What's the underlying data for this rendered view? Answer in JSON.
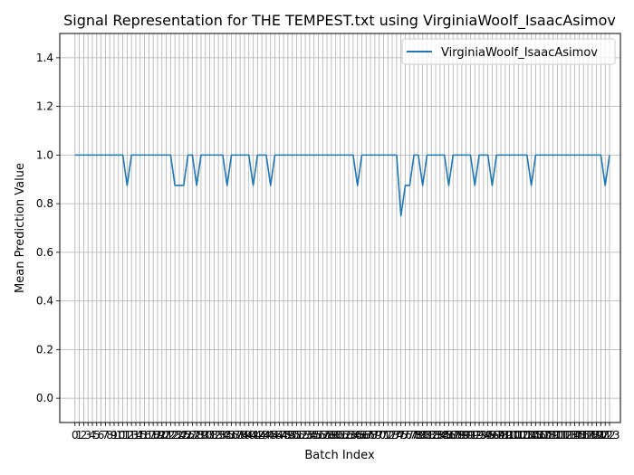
{
  "chart_data": {
    "type": "line",
    "title": "Signal Representation for THE TEMPEST.txt using VirginiaWoolf_IsaacAsimov",
    "xlabel": "Batch Index",
    "ylabel": "Mean Prediction Value",
    "xlim": [
      -3.5,
      125.5
    ],
    "ylim": [
      -0.1,
      1.5
    ],
    "yticks": [
      0.0,
      0.2,
      0.4,
      0.6,
      0.8,
      1.0,
      1.2,
      1.4
    ],
    "ytick_labels": [
      "0.0",
      "0.2",
      "0.4",
      "0.6",
      "0.8",
      "1.0",
      "1.2",
      "1.4"
    ],
    "x_tick_count": 124,
    "x_tick_labels_readable": [
      "0",
      "2",
      "3",
      "4",
      "5",
      "6",
      "7",
      "8",
      "9",
      "10",
      "11",
      "12",
      "13"
    ],
    "grid": true,
    "legend_position": "upper right",
    "series": [
      {
        "name": "VirginiaWoolf_IsaacAsimov",
        "color": "#1f77b4",
        "x": [
          0,
          1,
          2,
          3,
          4,
          5,
          6,
          7,
          8,
          9,
          10,
          11,
          12,
          13,
          14,
          15,
          16,
          17,
          18,
          19,
          20,
          21,
          22,
          23,
          24,
          25,
          26,
          27,
          28,
          29,
          30,
          31,
          32,
          33,
          34,
          35,
          36,
          37,
          38,
          39,
          40,
          41,
          42,
          43,
          44,
          45,
          46,
          47,
          48,
          49,
          50,
          51,
          52,
          53,
          54,
          55,
          56,
          57,
          58,
          59,
          60,
          61,
          62,
          63,
          64,
          65,
          66,
          67,
          68,
          69,
          70,
          71,
          72,
          73,
          74,
          75,
          76,
          77,
          78,
          79,
          80,
          81,
          82,
          83,
          84,
          85,
          86,
          87,
          88,
          89,
          90,
          91,
          92,
          93,
          94,
          95,
          96,
          97,
          98,
          99,
          100,
          101,
          102,
          103,
          104,
          105,
          106,
          107,
          108,
          109,
          110,
          111,
          112,
          113,
          114,
          115,
          116,
          117,
          118,
          119,
          120,
          121,
          122,
          123
        ],
        "y": [
          1,
          1,
          1,
          1,
          1,
          1,
          1,
          1,
          1,
          1,
          1,
          1,
          0.875,
          1,
          1,
          1,
          1,
          1,
          1,
          1,
          1,
          1,
          1,
          0.875,
          0.875,
          0.875,
          1,
          1,
          0.875,
          1,
          1,
          1,
          1,
          1,
          1,
          0.875,
          1,
          1,
          1,
          1,
          1,
          0.875,
          1,
          1,
          1,
          0.875,
          1,
          1,
          1,
          1,
          1,
          1,
          1,
          1,
          1,
          1,
          1,
          1,
          1,
          1,
          1,
          1,
          1,
          1,
          1,
          0.875,
          1,
          1,
          1,
          1,
          1,
          1,
          1,
          1,
          1,
          0.75,
          0.875,
          0.875,
          1,
          1,
          0.875,
          1,
          1,
          1,
          1,
          1,
          0.875,
          1,
          1,
          1,
          1,
          1,
          0.875,
          1,
          1,
          1,
          0.875,
          1,
          1,
          1,
          1,
          1,
          1,
          1,
          1,
          0.875,
          1,
          1,
          1,
          1,
          1,
          1,
          1,
          1,
          1,
          1,
          1,
          1,
          1,
          1,
          1,
          1,
          0.875,
          1
        ]
      }
    ]
  }
}
